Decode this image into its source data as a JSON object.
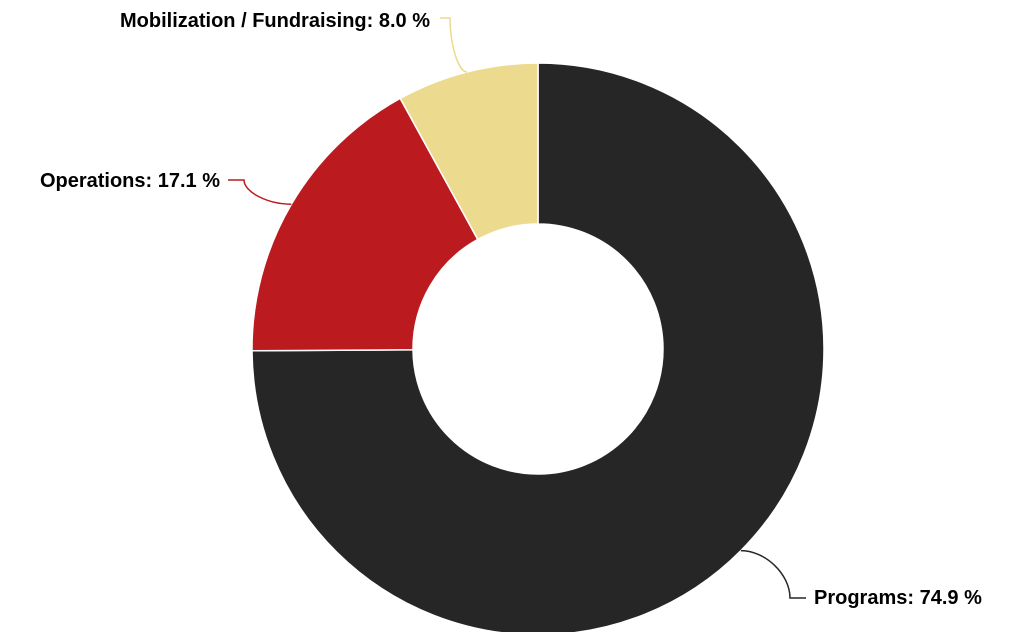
{
  "chart_data": {
    "type": "pie",
    "variant": "donut",
    "unit": "%",
    "slices": [
      {
        "label": "Programs",
        "value": 74.9,
        "color": "#262626",
        "display": "Programs: 74.9 %"
      },
      {
        "label": "Operations",
        "value": 17.1,
        "color": "#bb1a1f",
        "display": "Operations: 17.1 %"
      },
      {
        "label": "Mobilization / Fundraising",
        "value": 8.0,
        "color": "#ecdb8e",
        "display": "Mobilization / Fundraising: 8.0 %"
      }
    ],
    "legend": "none",
    "data_labels": "outside-with-connectors"
  }
}
